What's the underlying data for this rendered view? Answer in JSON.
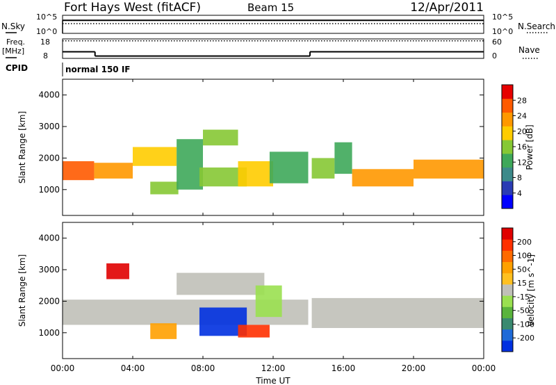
{
  "header": {
    "title": "Fort Hays West (fitACF)",
    "beam": "Beam 15",
    "date": "12/Apr/2011"
  },
  "noise_panel": {
    "left_label": "N.Sky",
    "left_ticks": [
      "10^5",
      "10^0"
    ],
    "right_label": "N.Search",
    "right_ticks": [
      "10^5",
      "10^0"
    ],
    "sky_level": 3.6,
    "search_level": 2.7
  },
  "freq_panel": {
    "left_label_1": "Freq.",
    "left_label_2": "[MHz]",
    "left_ticks": [
      "18",
      "8"
    ],
    "right_ticks": [
      "60",
      "0"
    ],
    "right_label": "Nave",
    "freq_segments": [
      {
        "t0": 0.0,
        "t1": 1.85,
        "mhz": 11.4
      },
      {
        "t0": 1.85,
        "t1": 14.1,
        "mhz": 9.2
      },
      {
        "t0": 14.1,
        "t1": 24.0,
        "mhz": 11.4
      }
    ],
    "nave_level": 54
  },
  "cpid": {
    "label": "CPID",
    "program": "normal 150 IF"
  },
  "x_axis": {
    "ticks": [
      "00:00",
      "04:00",
      "08:00",
      "12:00",
      "16:00",
      "20:00",
      "00:00"
    ],
    "label": "Time UT"
  },
  "chart_data": [
    {
      "type": "heatmap",
      "quantity": "Power",
      "colorbar_label": "Power [dB]",
      "colorbar_ticks": [
        "28",
        "24",
        "20",
        "16",
        "12",
        "8",
        "4"
      ],
      "colors": [
        "#0000ff",
        "#2a3cb4",
        "#3c8a8a",
        "#3ea85a",
        "#86c834",
        "#ffcc00",
        "#ff9800",
        "#ff5a00",
        "#e60000"
      ],
      "ylabel": "Slant Range [km]",
      "yticks": [
        "4000",
        "3000",
        "2000",
        "1000"
      ],
      "ylim": [
        180,
        4500
      ],
      "xlim": [
        0,
        24
      ],
      "bands": [
        {
          "t0": 0.0,
          "t1": 1.8,
          "r0": 1300,
          "r1": 1900,
          "level": 7
        },
        {
          "t0": 1.8,
          "t1": 4.0,
          "r0": 1350,
          "r1": 1850,
          "level": 6
        },
        {
          "t0": 4.0,
          "t1": 6.5,
          "r0": 1750,
          "r1": 2350,
          "level": 5
        },
        {
          "t0": 5.0,
          "t1": 6.6,
          "r0": 850,
          "r1": 1250,
          "level": 4
        },
        {
          "t0": 6.5,
          "t1": 8.0,
          "r0": 1000,
          "r1": 2600,
          "level": 3
        },
        {
          "t0": 8.0,
          "t1": 10.0,
          "r0": 2400,
          "r1": 2900,
          "level": 4
        },
        {
          "t0": 7.8,
          "t1": 10.5,
          "r0": 1100,
          "r1": 1700,
          "level": 4
        },
        {
          "t0": 10.0,
          "t1": 12.0,
          "r0": 1100,
          "r1": 1900,
          "level": 5
        },
        {
          "t0": 11.8,
          "t1": 14.0,
          "r0": 1200,
          "r1": 2200,
          "level": 3
        },
        {
          "t0": 14.2,
          "t1": 15.5,
          "r0": 1350,
          "r1": 2000,
          "level": 4
        },
        {
          "t0": 15.5,
          "t1": 16.5,
          "r0": 1500,
          "r1": 2500,
          "level": 3
        },
        {
          "t0": 16.5,
          "t1": 20.0,
          "r0": 1100,
          "r1": 1650,
          "level": 6
        },
        {
          "t0": 20.0,
          "t1": 24.0,
          "r0": 1350,
          "r1": 1950,
          "level": 6
        }
      ]
    },
    {
      "type": "heatmap",
      "quantity": "Velocity",
      "colorbar_label": "Velocity [m s^-1]",
      "colorbar_ticks": [
        "200",
        "100",
        "50",
        "15",
        "-15",
        "-50",
        "-100",
        "-200"
      ],
      "colors": [
        "#0030e0",
        "#1e6ad8",
        "#3a8a70",
        "#5ab43c",
        "#9ae050",
        "#c0c0b8",
        "#ffc020",
        "#ffa000",
        "#ff6a00",
        "#ff3000",
        "#e00000"
      ],
      "ylabel": "Slant Range [km]",
      "yticks": [
        "4000",
        "3000",
        "2000",
        "1000"
      ],
      "ylim": [
        180,
        4500
      ],
      "xlim": [
        0,
        24
      ],
      "bands": [
        {
          "t0": 0.0,
          "t1": 14.0,
          "r0": 1250,
          "r1": 2050,
          "level": 5
        },
        {
          "t0": 14.2,
          "t1": 24.0,
          "r0": 1150,
          "r1": 2100,
          "level": 5
        },
        {
          "t0": 6.5,
          "t1": 11.5,
          "r0": 2200,
          "r1": 2900,
          "level": 5
        },
        {
          "t0": 5.0,
          "t1": 6.5,
          "r0": 800,
          "r1": 1300,
          "level": 7
        },
        {
          "t0": 7.8,
          "t1": 10.5,
          "r0": 900,
          "r1": 1800,
          "level": 0
        },
        {
          "t0": 10.0,
          "t1": 11.8,
          "r0": 850,
          "r1": 1250,
          "level": 9
        },
        {
          "t0": 11.0,
          "t1": 12.5,
          "r0": 1500,
          "r1": 2500,
          "level": 4
        },
        {
          "t0": 2.5,
          "t1": 3.8,
          "r0": 2700,
          "r1": 3200,
          "level": 10
        }
      ]
    }
  ]
}
